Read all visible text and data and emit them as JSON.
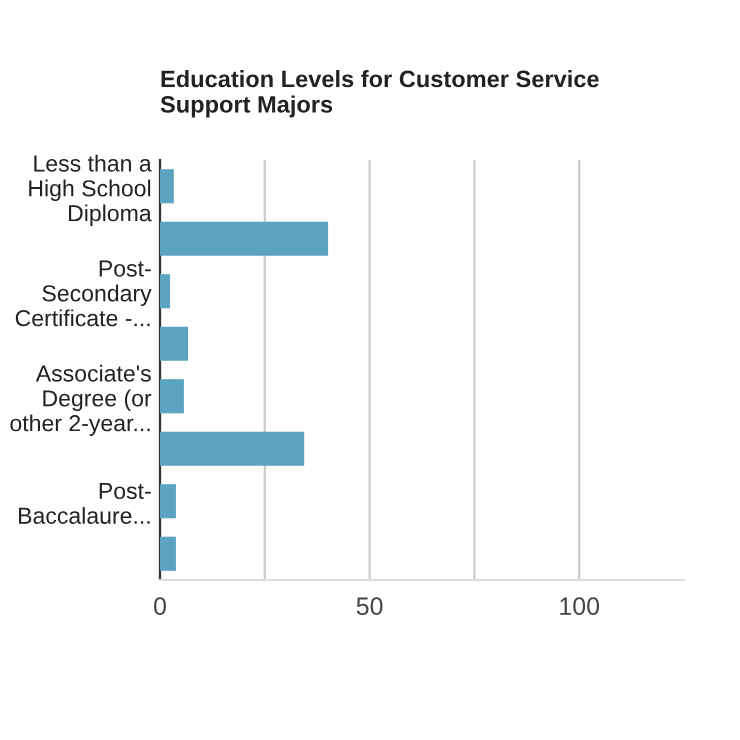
{
  "chart_data": {
    "type": "bar",
    "orientation": "horizontal",
    "title": "Education Levels for Customer Service\nSupport Majors",
    "categories": [
      "Less than a\nHigh School\nDiploma",
      null,
      "Post-\nSecondary\nCertificate -...",
      null,
      "Associate's\nDegree (or\nother 2-year...",
      null,
      "Post-\nBaccalaure...",
      null
    ],
    "values": [
      3.3,
      40.1,
      2.4,
      6.7,
      5.7,
      34.4,
      3.8,
      3.8
    ],
    "color": "#5ba3c0",
    "xlim": [
      0,
      125
    ],
    "xticks": [
      0,
      {
        "value": 25,
        "label": null
      },
      50,
      {
        "value": 75,
        "label": null
      },
      100
    ],
    "grid": "x"
  }
}
